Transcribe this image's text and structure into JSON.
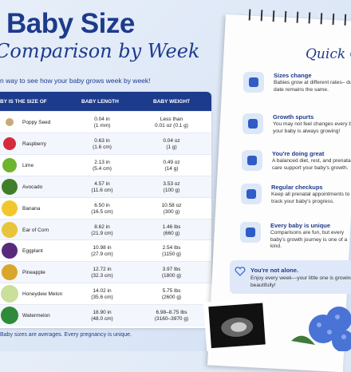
{
  "header": {
    "title": "Baby Size",
    "subtitle": "Comparison by Week",
    "tagline": "n way to see how your baby grows week by week!"
  },
  "table": {
    "columns": [
      "BY IS THE SIZE OF",
      "BABY LENGTH",
      "BABY WEIGHT"
    ],
    "rows": [
      {
        "item": "Poppy Seed",
        "length": "0.04 in",
        "length_metric": "(1 mm)",
        "weight": "Less than",
        "weight_metric": "0.01 oz (0.1 g)"
      },
      {
        "item": "Raspberry",
        "length": "0.63 in",
        "length_metric": "(1.6 cm)",
        "weight": "0.04 oz",
        "weight_metric": "(1 g)"
      },
      {
        "item": "Lime",
        "length": "2.13 in",
        "length_metric": "(5.4 cm)",
        "weight": "0.49 oz",
        "weight_metric": "(14 g)"
      },
      {
        "item": "Avocado",
        "length": "4.57 in",
        "length_metric": "(11.6 cm)",
        "weight": "3.53 oz",
        "weight_metric": "(100 g)"
      },
      {
        "item": "Banana",
        "length": "6.50 in",
        "length_metric": "(16.5 cm)",
        "weight": "10.58 oz",
        "weight_metric": "(300 g)"
      },
      {
        "item": "Ear of Corn",
        "length": "8.62 in",
        "length_metric": "(21.9 cm)",
        "weight": "1.46 lbs",
        "weight_metric": "(660 g)"
      },
      {
        "item": "Eggplant",
        "length": "10.98 in",
        "length_metric": "(27.9 cm)",
        "weight": "2.54 lbs",
        "weight_metric": "(1150 g)"
      },
      {
        "item": "Pineapple",
        "length": "12.72 in",
        "length_metric": "(32.3 cm)",
        "weight": "3.97 lbs",
        "weight_metric": "(1800 g)"
      },
      {
        "item": "Honeydew Melon",
        "length": "14.02 in",
        "length_metric": "(35.6 cm)",
        "weight": "5.75 lbs",
        "weight_metric": "(2600 g)"
      },
      {
        "item": "Watermelon",
        "length": "18.90 in",
        "length_metric": "(48.0 cm)",
        "weight": "6.98–8.75 lbs",
        "weight_metric": "(3160–3970 g)"
      }
    ],
    "footnote": "Baby sizes are averages. Every pregnancy is unique."
  },
  "guide": {
    "title": "Quick G",
    "items": [
      {
        "title": "Sizes change",
        "text": "Babies grow at different rates– due date remains the same."
      },
      {
        "title": "Growth spurts",
        "text": "You may not feel changes every but your baby is always growing!"
      },
      {
        "title": "You're doing great",
        "text": "A balanced diet, rest, and prenata care support your baby's growth."
      },
      {
        "title": "Regular checkups",
        "text": "Keep all prenatal appointments to track your baby's progress."
      },
      {
        "title": "Every baby is unique",
        "text": "Comparisons are fun, but every baby's growth journey is one of a kind."
      }
    ],
    "note": {
      "title": "You're not alone.",
      "text": "Enjoy every week—your little one is growing beautifully!"
    }
  }
}
